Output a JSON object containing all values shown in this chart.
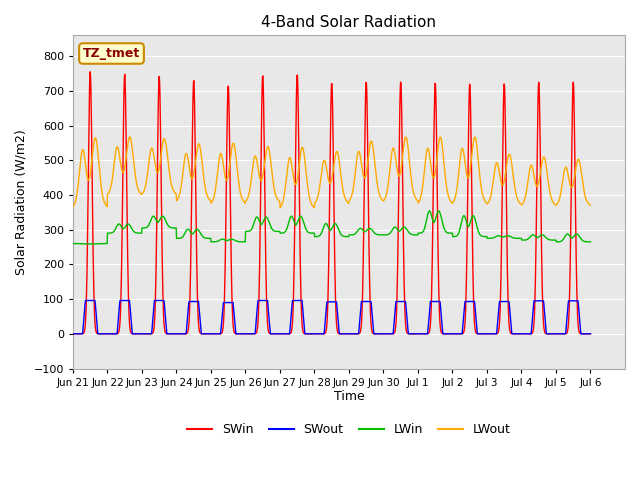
{
  "title": "4-Band Solar Radiation",
  "xlabel": "Time",
  "ylabel": "Solar Radiation (W/m2)",
  "ylim": [
    -100,
    860
  ],
  "yticks": [
    -100,
    0,
    100,
    200,
    300,
    400,
    500,
    600,
    700,
    800
  ],
  "colors": {
    "SWin": "#ff0000",
    "SWout": "#0000ff",
    "LWin": "#00bb00",
    "LWout": "#ffaa00"
  },
  "annotation_label": "TZ_tmet",
  "background_color": "#ffffff",
  "plot_bg_color": "#e8e8e8",
  "grid_color": "#ffffff",
  "tick_labels": [
    "Jun 21",
    "Jun 22",
    "Jun 23",
    "Jun 24",
    "Jun 25",
    "Jun 26",
    "Jun 27",
    "Jun 28",
    "Jun 29",
    "Jun 30",
    "Jul 1",
    "Jul 2",
    "Jul 3",
    "Jul 4",
    "Jul 5",
    "Jul 6"
  ],
  "SWin_peaks": [
    755,
    748,
    742,
    730,
    715,
    745,
    748,
    724,
    727,
    727,
    723,
    720,
    720,
    725,
    725
  ],
  "SWout_peaks": [
    96,
    96,
    96,
    93,
    90,
    96,
    96,
    92,
    93,
    93,
    93,
    93,
    93,
    95,
    95
  ],
  "LWin_day_vals": [
    258,
    325,
    350,
    310,
    275,
    350,
    355,
    330,
    310,
    315,
    375,
    360,
    285,
    290,
    295
  ],
  "LWin_night_vals": [
    260,
    290,
    305,
    275,
    265,
    295,
    290,
    280,
    285,
    285,
    290,
    280,
    275,
    270,
    265
  ],
  "LWout_peaks": [
    568,
    570,
    565,
    550,
    552,
    542,
    540,
    528,
    558,
    570,
    570,
    570,
    520,
    512,
    505
  ],
  "LWout_night": [
    365,
    400,
    402,
    382,
    375,
    380,
    362,
    375,
    382,
    382,
    375,
    375,
    372,
    370,
    370
  ]
}
